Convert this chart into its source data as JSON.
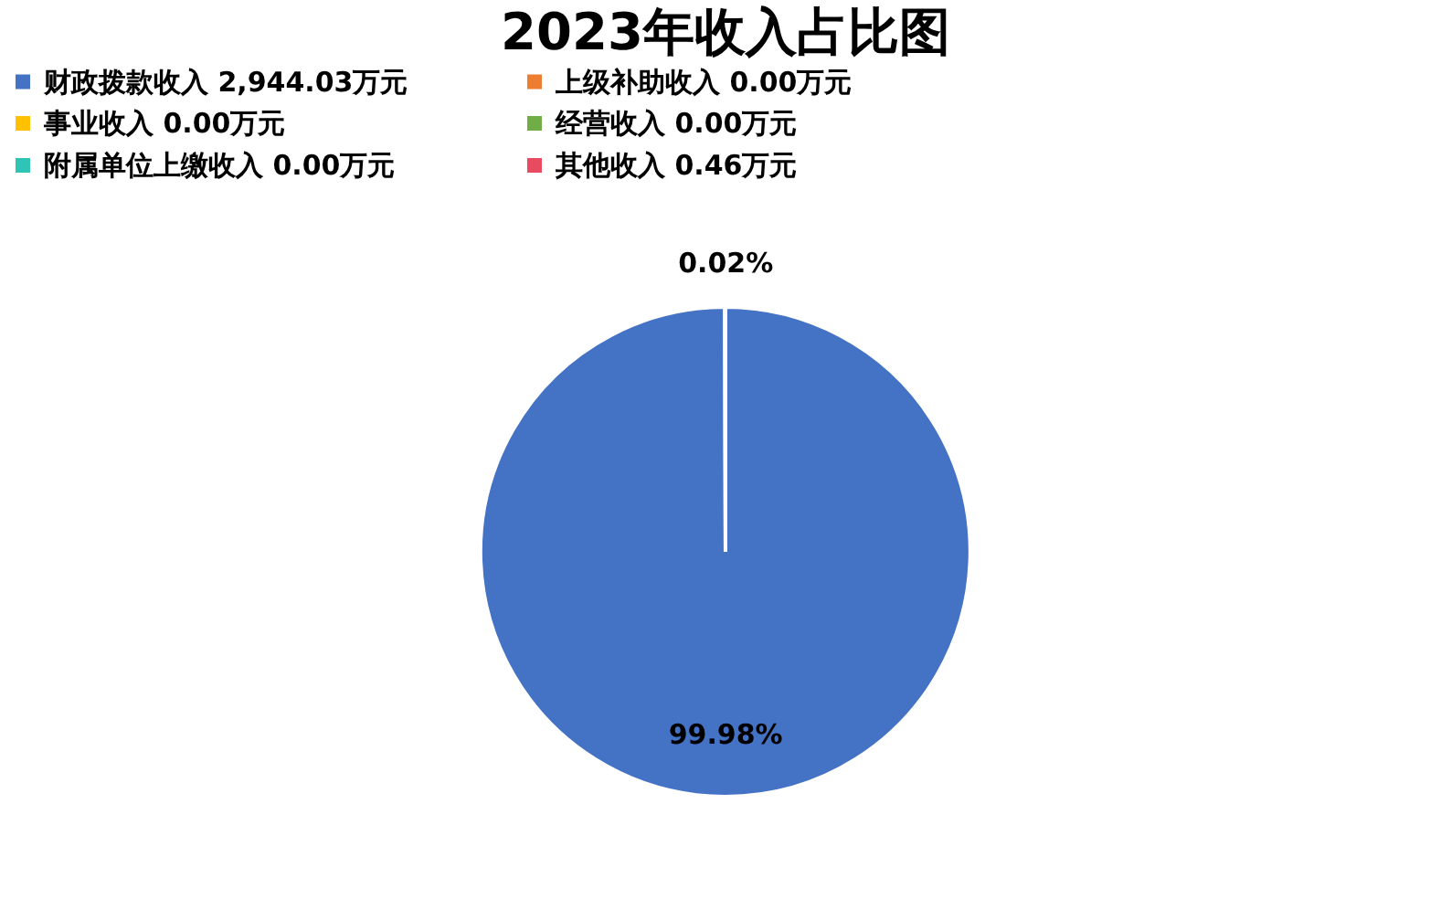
{
  "chart_data": {
    "type": "pie",
    "title": "2023年收入占比图",
    "categories": [
      "财政拨款收入 2,944.03万元",
      "上级补助收入 0.00万元",
      "事业收入 0.00万元",
      "经营收入 0.00万元",
      "附属单位上缴收入 0.00万元",
      "其他收入 0.46万元"
    ],
    "values": [
      99.98,
      0,
      0,
      0,
      0,
      0.02
    ],
    "colors": [
      "#4472c4",
      "#ed7d31",
      "#ffc000",
      "#70ad47",
      "#2ec4b6",
      "#e84a5f"
    ],
    "value_labels": [
      "99.98%",
      null,
      null,
      null,
      null,
      "0.02%"
    ],
    "legend": "top"
  }
}
